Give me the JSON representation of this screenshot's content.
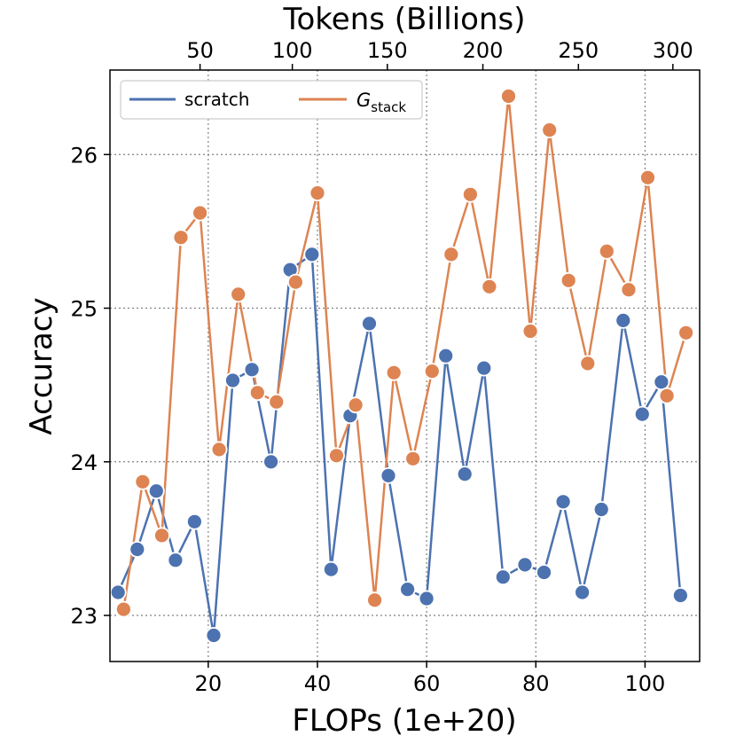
{
  "chart_data": {
    "type": "line",
    "xlabel": "FLOPs (1e+20)",
    "ylabel": "Accuracy",
    "top_xlabel": "Tokens (Billions)",
    "xlim": [
      2,
      110
    ],
    "ylim": [
      22.7,
      26.55
    ],
    "xticks": [
      20,
      40,
      60,
      80,
      100
    ],
    "yticks": [
      23,
      24,
      25,
      26
    ],
    "top_ticks": [
      {
        "label": "50",
        "x": 18.5
      },
      {
        "label": "100",
        "x": 35.4
      },
      {
        "label": "150",
        "x": 52.8
      },
      {
        "label": "200",
        "x": 70.3
      },
      {
        "label": "250",
        "x": 87.8
      },
      {
        "label": "300",
        "x": 105.1
      }
    ],
    "grid": true,
    "legend_position": "top-left",
    "series": [
      {
        "name": "scratch",
        "color": "#4c72b0",
        "x": [
          3.5,
          7,
          10.5,
          14,
          17.5,
          21,
          24.5,
          28,
          31.5,
          35,
          39,
          42.5,
          46,
          49.5,
          53,
          56.5,
          60,
          63.5,
          67,
          70.5,
          74,
          78,
          81.5,
          85,
          88.5,
          92,
          96,
          99.5,
          103,
          106.5
        ],
        "y": [
          23.15,
          23.43,
          23.81,
          23.36,
          23.61,
          22.87,
          24.53,
          24.6,
          24.0,
          25.25,
          25.35,
          23.3,
          24.3,
          24.9,
          23.91,
          23.17,
          23.11,
          24.69,
          23.92,
          24.61,
          23.25,
          23.33,
          23.28,
          23.74,
          23.15,
          23.69,
          24.92,
          24.31,
          24.52,
          23.13
        ]
      },
      {
        "name": "G_stack",
        "color": "#dd8452",
        "x": [
          4.5,
          8,
          11.5,
          15,
          18.5,
          22,
          25.5,
          29,
          32.5,
          36,
          40,
          43.5,
          47,
          50.5,
          54,
          57.5,
          61,
          64.5,
          68,
          71.5,
          75,
          79,
          82.5,
          86,
          89.5,
          93,
          97,
          100.5,
          104,
          107.5
        ],
        "y": [
          23.04,
          23.87,
          23.52,
          25.46,
          25.62,
          24.08,
          25.09,
          24.45,
          24.39,
          25.17,
          25.75,
          24.04,
          24.37,
          23.1,
          24.58,
          24.02,
          24.59,
          25.35,
          25.74,
          25.14,
          26.38,
          24.85,
          26.16,
          25.18,
          24.64,
          25.37,
          25.12,
          25.85,
          24.43,
          24.84
        ]
      }
    ]
  }
}
